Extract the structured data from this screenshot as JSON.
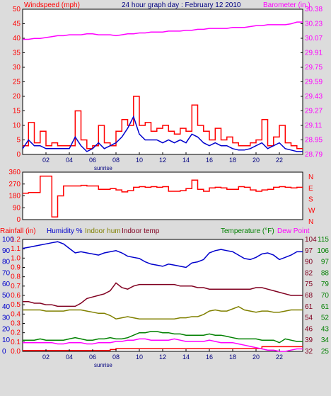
{
  "header": {
    "left_title": "Windspeed (mph)",
    "center_title": "24 hour graph day : February 12 2010",
    "right_title": "Barometer (in.)"
  },
  "colors": {
    "background": "#dcdcdc",
    "plot": "#ffffff",
    "frame": "#000000",
    "wind_avg": "#0000cc",
    "wind_gust": "#ff0000",
    "barometer": "#ff00ff",
    "direction": "#ff0000",
    "rainfall": "#ff0000",
    "humidity": "#0000cc",
    "indoor_hum": "#808000",
    "indoor_temp": "#800020",
    "temperature": "#008000",
    "dew_point": "#ff00ff"
  },
  "x_ticks": [
    "02",
    "04",
    "06",
    "08",
    "10",
    "12",
    "14",
    "16",
    "18",
    "20",
    "22"
  ],
  "sunrise_label": "sunrise",
  "chart_data": [
    {
      "type": "line",
      "title": "24 hour graph day : February 12 2010",
      "ylabel": "Windspeed (mph)",
      "y2label": "Barometer (in.)",
      "ylim": [
        0,
        50
      ],
      "y_ticks": [
        "0",
        "5",
        "10",
        "15",
        "20",
        "25",
        "30",
        "35",
        "40",
        "45",
        "50"
      ],
      "y2lim": [
        28.79,
        30.38
      ],
      "y2_ticks": [
        "28.79",
        "28.95",
        "29.11",
        "29.27",
        "29.43",
        "29.59",
        "29.75",
        "29.91",
        "30.07",
        "30.23",
        "30.38"
      ],
      "x": [
        0,
        0.5,
        1,
        1.5,
        2,
        2.5,
        3,
        3.5,
        4,
        4.5,
        5,
        5.5,
        6,
        6.5,
        7,
        7.5,
        8,
        8.5,
        9,
        9.5,
        10,
        10.5,
        11,
        11.5,
        12,
        12.5,
        13,
        13.5,
        14,
        14.5,
        15,
        15.5,
        16,
        16.5,
        17,
        17.5,
        18,
        18.5,
        19,
        19.5,
        20,
        20.5,
        21,
        21.5,
        22,
        22.5,
        23,
        23.5
      ],
      "series": [
        {
          "name": "Windspeed gust",
          "values": [
            3,
            11,
            4,
            8,
            3,
            4,
            3,
            3,
            3,
            15,
            5,
            2,
            3,
            10,
            4,
            3,
            8,
            12,
            10,
            20,
            10,
            11,
            8,
            9,
            10,
            8,
            7,
            9,
            8,
            17,
            10,
            8,
            5,
            9,
            5,
            6,
            4,
            3,
            3,
            4,
            5,
            12,
            3,
            6,
            10,
            4,
            3,
            2
          ]
        },
        {
          "name": "Windspeed avg",
          "values": [
            2,
            5,
            3,
            3,
            2,
            2,
            2,
            2,
            2,
            6,
            3,
            1,
            2,
            4,
            2,
            3,
            4,
            6,
            9,
            13,
            7,
            5,
            5,
            5,
            4,
            5,
            4,
            5,
            4,
            7,
            6,
            4,
            3,
            4,
            3,
            3,
            2,
            1.5,
            1.5,
            2,
            3,
            4,
            2,
            3,
            4,
            2,
            1.5,
            1
          ]
        },
        {
          "name": "Barometer",
          "values": [
            30.05,
            30.05,
            30.06,
            30.06,
            30.07,
            30.08,
            30.09,
            30.09,
            30.1,
            30.1,
            30.1,
            30.11,
            30.11,
            30.1,
            30.1,
            30.1,
            30.09,
            30.1,
            30.11,
            30.11,
            30.12,
            30.12,
            30.13,
            30.13,
            30.13,
            30.14,
            30.14,
            30.14,
            30.15,
            30.15,
            30.16,
            30.16,
            30.17,
            30.17,
            30.17,
            30.17,
            30.18,
            30.18,
            30.18,
            30.19,
            30.2,
            30.2,
            30.21,
            30.21,
            30.21,
            30.21,
            30.22,
            30.24
          ]
        }
      ]
    },
    {
      "type": "line",
      "ylabel": "Wind direction",
      "ylim": [
        0,
        360
      ],
      "y_ticks": [
        "0",
        "90",
        "180",
        "270",
        "360"
      ],
      "y2_ticks": [
        "N",
        "W",
        "S",
        "E",
        "N"
      ],
      "x": [
        0,
        0.5,
        1,
        1.5,
        2,
        2.5,
        3,
        3.5,
        4,
        4.5,
        5,
        5.5,
        6,
        6.5,
        7,
        7.5,
        8,
        8.5,
        9,
        9.5,
        10,
        10.5,
        11,
        11.5,
        12,
        12.5,
        13,
        13.5,
        14,
        14.5,
        15,
        15.5,
        16,
        16.5,
        17,
        17.5,
        18,
        18.5,
        19,
        19.5,
        20,
        20.5,
        21,
        21.5,
        22,
        22.5,
        23,
        23.5
      ],
      "series": [
        {
          "name": "Wind direction",
          "values": [
            200,
            205,
            205,
            330,
            330,
            20,
            180,
            255,
            255,
            255,
            260,
            255,
            255,
            230,
            230,
            235,
            225,
            210,
            220,
            245,
            250,
            245,
            250,
            245,
            250,
            215,
            215,
            220,
            235,
            300,
            230,
            215,
            240,
            245,
            240,
            230,
            230,
            250,
            245,
            225,
            215,
            225,
            230,
            245,
            250,
            245,
            240,
            245
          ]
        }
      ]
    },
    {
      "type": "line",
      "ylabel": "Rainfall (in)",
      "legend": [
        "Rainfall (in)",
        "Humidity %",
        "Indoor hum",
        "Indoor temp",
        "Temperature (°F)",
        "Dew Point"
      ],
      "ylim": [
        0,
        1.2
      ],
      "y_ticks_rain": [
        "0.0",
        "0.1",
        "0.2",
        "0.3",
        "0.4",
        "0.5",
        "0.6",
        "0.7",
        "0.8",
        "0.9",
        "1.0",
        "1.1",
        "1.2"
      ],
      "y_ticks_hum": [
        "0",
        "10",
        "20",
        "30",
        "40",
        "50",
        "60",
        "70",
        "80",
        "90",
        "100"
      ],
      "y2lim": [
        25,
        115
      ],
      "y2_ticks_a": [
        "32",
        "39",
        "46",
        "54",
        "61",
        "68",
        "75",
        "82",
        "90",
        "97",
        "104"
      ],
      "y2_ticks_b": [
        "25",
        "34",
        "43",
        "52",
        "61",
        "70",
        "79",
        "88",
        "97",
        "106",
        "115"
      ],
      "x": [
        0,
        0.5,
        1,
        1.5,
        2,
        2.5,
        3,
        3.5,
        4,
        4.5,
        5,
        5.5,
        6,
        6.5,
        7,
        7.5,
        8,
        8.5,
        9,
        9.5,
        10,
        10.5,
        11,
        11.5,
        12,
        12.5,
        13,
        13.5,
        14,
        14.5,
        15,
        15.5,
        16,
        16.5,
        17,
        17.5,
        18,
        18.5,
        19,
        19.5,
        20,
        20.5,
        21,
        21.5,
        22,
        22.5,
        23,
        23.5
      ],
      "series": [
        {
          "name": "Rainfall (in)",
          "values": [
            0.01,
            0.01,
            0.01,
            0.01,
            0.01,
            0.01,
            0.01,
            0.01,
            0.01,
            0.01,
            0.01,
            0.01,
            0.01,
            0.01,
            0.01,
            0.02,
            0.03,
            0.03,
            0.03,
            0.03,
            0.03,
            0.03,
            0.03,
            0.03,
            0.03,
            0.03,
            0.03,
            0.03,
            0.03,
            0.03,
            0.03,
            0.03,
            0.03,
            0.03,
            0.03,
            0.03,
            0.03,
            0.03,
            0.03,
            0.03,
            0.03,
            0.05,
            0.05,
            0.05,
            0.05,
            0.05,
            0.05,
            0.05
          ]
        },
        {
          "name": "Humidity %",
          "values": [
            92,
            93,
            94,
            95,
            96,
            97,
            98,
            96,
            92,
            88,
            89,
            88,
            87,
            86,
            88,
            89,
            90,
            88,
            85,
            84,
            83,
            80,
            78,
            77,
            76,
            78,
            77,
            76,
            75,
            79,
            80,
            82,
            88,
            90,
            91,
            90,
            89,
            86,
            83,
            82,
            84,
            87,
            88,
            86,
            82,
            84,
            86,
            89
          ]
        },
        {
          "name": "Indoor hum",
          "values": [
            37,
            37,
            37,
            37,
            36,
            36,
            36,
            36,
            37,
            37,
            37,
            36,
            35,
            34,
            34,
            32,
            29,
            30,
            31,
            30,
            29,
            29,
            29,
            29,
            29,
            29,
            29,
            30,
            30,
            31,
            31,
            33,
            36,
            37,
            36,
            36,
            38,
            40,
            37,
            36,
            35,
            36,
            36,
            35,
            35,
            36,
            37,
            37
          ]
        },
        {
          "name": "Indoor temp",
          "values": [
            64,
            64,
            63,
            63,
            62,
            62,
            61,
            61,
            61,
            61,
            63,
            66,
            67,
            68,
            69,
            71,
            76,
            73,
            72,
            74,
            75,
            75,
            75,
            75,
            75,
            75,
            75,
            74,
            74,
            74,
            73,
            73,
            72,
            72,
            72,
            72,
            72,
            72,
            72,
            72,
            73,
            73,
            72,
            71,
            70,
            69,
            68,
            68
          ]
        },
        {
          "name": "Temperature (°F)",
          "values": [
            34,
            34,
            34,
            35,
            34,
            34,
            34,
            34,
            35,
            36,
            35,
            34,
            34,
            35,
            35,
            36,
            35,
            35,
            36,
            38,
            40,
            40,
            41,
            41,
            40,
            40,
            39,
            39,
            38,
            38,
            38,
            38,
            39,
            38,
            38,
            37,
            36,
            35,
            35,
            35,
            35,
            34,
            34,
            34,
            32,
            35,
            34,
            33
          ]
        },
        {
          "name": "Dew Point",
          "values": [
            32,
            32,
            32,
            32,
            32,
            32,
            31,
            31,
            32,
            32,
            32,
            31,
            31,
            32,
            32,
            32,
            33,
            33,
            34,
            34,
            35,
            35,
            34,
            34,
            34,
            34,
            35,
            34,
            33,
            33,
            33,
            33,
            34,
            33,
            32,
            32,
            32,
            31,
            30,
            29,
            28,
            27,
            26,
            26,
            25,
            25,
            26,
            27
          ]
        }
      ]
    }
  ]
}
